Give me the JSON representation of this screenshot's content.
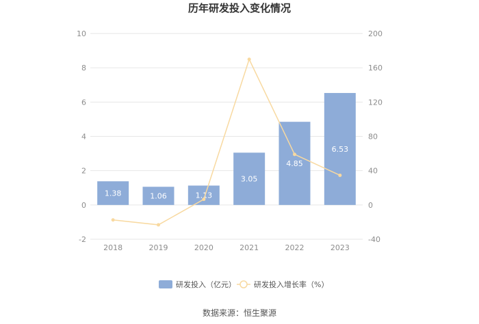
{
  "chart_data": {
    "type": "bar",
    "title": "历年研发投入变化情况",
    "categories": [
      "2018",
      "2019",
      "2020",
      "2021",
      "2022",
      "2023"
    ],
    "series": [
      {
        "name": "研发投入（亿元）",
        "type": "bar",
        "axis": "left",
        "values": [
          1.38,
          1.06,
          1.13,
          3.05,
          4.85,
          6.53
        ],
        "color": "#8eacd8"
      },
      {
        "name": "研发投入增长率（%）",
        "type": "line",
        "axis": "right",
        "values": [
          -17.5,
          -23.2,
          6.6,
          169.9,
          59.0,
          34.6
        ],
        "color": "#f8d9a0"
      }
    ],
    "y_left": {
      "min": -2,
      "max": 10,
      "ticks": [
        "-2",
        "0",
        "2",
        "4",
        "6",
        "8",
        "10"
      ]
    },
    "y_right": {
      "min": -40,
      "max": 200,
      "ticks": [
        "-40",
        "0",
        "40",
        "80",
        "120",
        "160",
        "200"
      ]
    },
    "grid": true,
    "legend": "bottom-center"
  },
  "source": "数据来源：恒生聚源"
}
